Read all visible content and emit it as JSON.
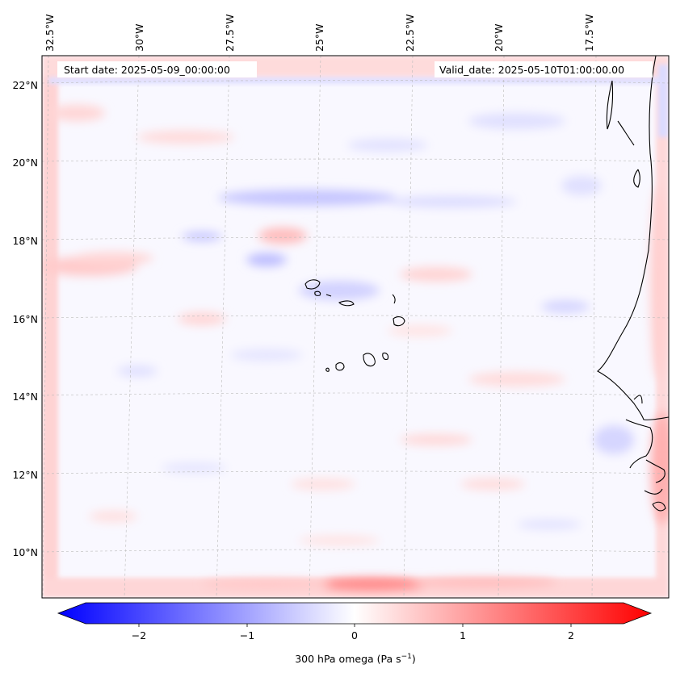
{
  "map": {
    "start_date": "Start date: 2025-05-09_00:00:00",
    "valid_date": "Valid_date: 2025-05-10T01:00:00.00",
    "lon_labels": [
      "32.5°W",
      "30°W",
      "27.5°W",
      "25°W",
      "22.5°W",
      "20°W",
      "17.5°W"
    ],
    "lat_labels": [
      "22°N",
      "20°N",
      "18°N",
      "16°N",
      "14°N",
      "12°N",
      "10°N"
    ],
    "field": "300 hPa omega",
    "colormap": "bwr",
    "projection": "Lambert conformal",
    "gridlines": true
  },
  "colorbar": {
    "label": "300 hPa omega (Pa s",
    "label_superscript": "−1",
    "label_close": ")",
    "ticks": [
      "−2",
      "−1",
      "0",
      "1",
      "2"
    ],
    "range": [
      -2.6,
      2.6
    ],
    "colors": {
      "low": "#0000ff",
      "mid": "#ffffff",
      "high": "#ff0000"
    }
  }
}
